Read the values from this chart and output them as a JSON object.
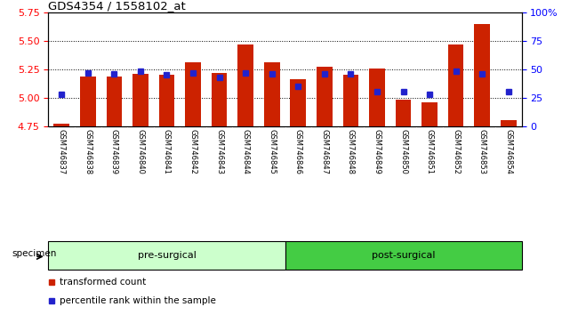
{
  "title": "GDS4354 / 1558102_at",
  "samples": [
    "GSM746837",
    "GSM746838",
    "GSM746839",
    "GSM746840",
    "GSM746841",
    "GSM746842",
    "GSM746843",
    "GSM746844",
    "GSM746845",
    "GSM746846",
    "GSM746847",
    "GSM746848",
    "GSM746849",
    "GSM746850",
    "GSM746851",
    "GSM746852",
    "GSM746853",
    "GSM746854"
  ],
  "bar_values": [
    4.77,
    5.19,
    5.19,
    5.21,
    5.2,
    5.31,
    5.22,
    5.47,
    5.31,
    5.16,
    5.27,
    5.2,
    5.26,
    4.98,
    4.96,
    5.47,
    5.65,
    4.8
  ],
  "percentile_values": [
    28,
    47,
    46,
    48,
    45,
    47,
    43,
    47,
    46,
    35,
    46,
    46,
    30,
    30,
    28,
    48,
    46,
    30
  ],
  "ylim_left": [
    4.75,
    5.75
  ],
  "ylim_right": [
    0,
    100
  ],
  "bar_color": "#cc2200",
  "percentile_color": "#2222cc",
  "pre_surgical_color": "#ccffcc",
  "post_surgical_color": "#44cc44",
  "pre_surgical_label": "pre-surgical",
  "post_surgical_label": "post-surgical",
  "pre_surgical_count": 9,
  "post_surgical_count": 9,
  "legend_bar_label": "transformed count",
  "legend_pct_label": "percentile rank within the sample",
  "specimen_label": "specimen",
  "yticks_left": [
    4.75,
    5.0,
    5.25,
    5.5,
    5.75
  ],
  "yticks_right": [
    0,
    25,
    50,
    75,
    100
  ],
  "xlabels_bg_color": "#cccccc",
  "background_color": "#ffffff",
  "grid_color": "#000000"
}
